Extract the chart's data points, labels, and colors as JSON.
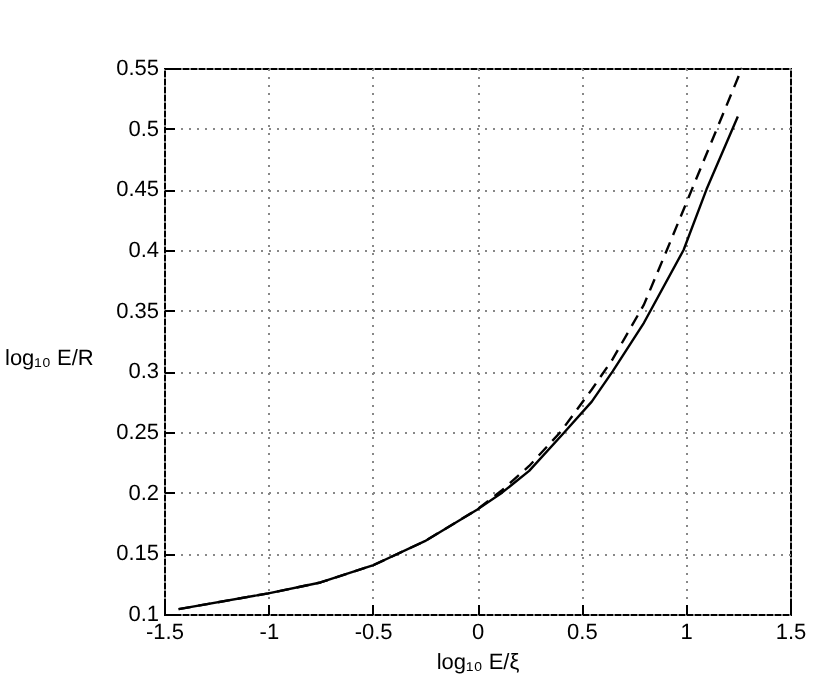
{
  "chart_data": {
    "type": "line",
    "xlabel": "log₁₀ E/ξ",
    "ylabel": "log₁₀ E/R",
    "xlim": [
      -1.5,
      1.5
    ],
    "ylim": [
      0.1,
      0.55
    ],
    "xticks": [
      -1.5,
      -1,
      -0.5,
      0,
      0.5,
      1,
      1.5
    ],
    "yticks": [
      0.1,
      0.15,
      0.2,
      0.25,
      0.3,
      0.35,
      0.4,
      0.45,
      0.5,
      0.55
    ],
    "grid": true,
    "series": [
      {
        "color": "#000000",
        "line_style": "solid",
        "x": [
          -1.43,
          -1,
          -0.75,
          -0.5,
          -0.25,
          0,
          0.12,
          0.25,
          0.42,
          0.55,
          0.65,
          0.8,
          0.99,
          1.1,
          1.2,
          1.25
        ],
        "values": [
          0.104,
          0.117,
          0.126,
          0.14,
          0.16,
          0.186,
          0.2,
          0.218,
          0.25,
          0.275,
          0.3,
          0.34,
          0.4,
          0.45,
          0.49,
          0.51
        ]
      },
      {
        "color": "#000000",
        "line_style": "dashed",
        "x": [
          -1.43,
          -1,
          -0.75,
          -0.5,
          -0.25,
          0,
          0.12,
          0.25,
          0.4,
          0.55,
          0.65,
          0.8,
          0.91,
          1.03,
          1.15,
          1.27
        ],
        "values": [
          0.104,
          0.117,
          0.126,
          0.14,
          0.16,
          0.186,
          0.202,
          0.222,
          0.25,
          0.285,
          0.31,
          0.355,
          0.4,
          0.45,
          0.5,
          0.55
        ]
      }
    ]
  }
}
